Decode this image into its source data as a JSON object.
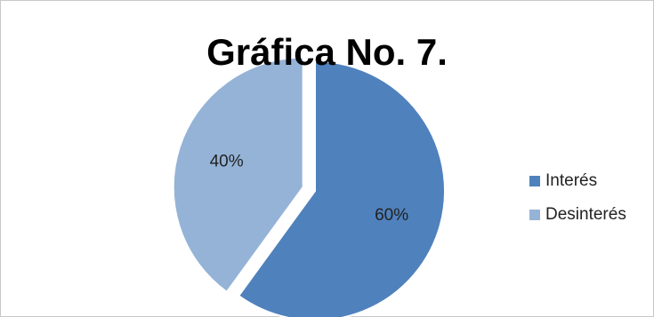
{
  "chart_data": {
    "type": "pie",
    "title": "Gráfica No. 7.",
    "categories": [
      "Interés",
      "Desinterés"
    ],
    "values": [
      60,
      40
    ],
    "data_labels": [
      "60%",
      "40%"
    ],
    "colors": [
      "#4f81bd",
      "#95b3d7"
    ],
    "exploded_slice": "Desinterés",
    "legend_position": "right"
  }
}
